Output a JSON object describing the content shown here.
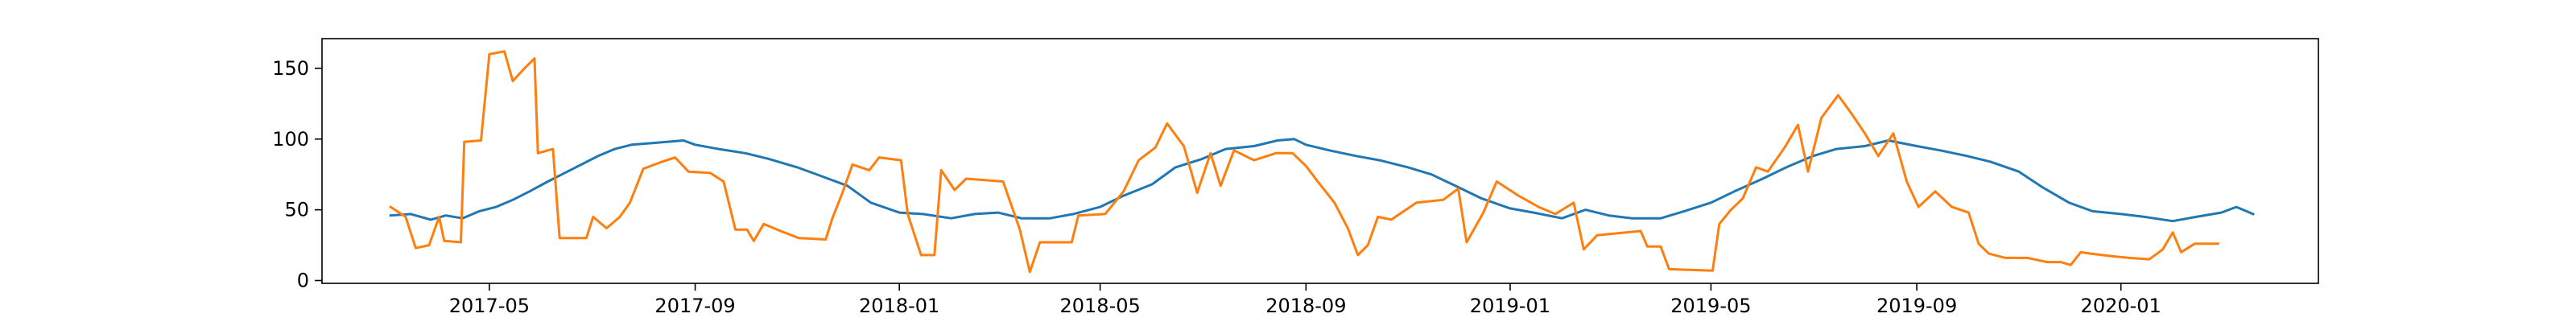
{
  "chart_data": {
    "type": "line",
    "title": "",
    "xlabel": "",
    "ylabel": "",
    "grid": false,
    "legend": "none",
    "xlim": [
      "2017-01-21",
      "2020-04-28"
    ],
    "ylim": [
      -2,
      171
    ],
    "x_ticks": [
      {
        "date": "2017-05-01",
        "label": "2017-05"
      },
      {
        "date": "2017-09-01",
        "label": "2017-09"
      },
      {
        "date": "2018-01-01",
        "label": "2018-01"
      },
      {
        "date": "2018-05-01",
        "label": "2018-05"
      },
      {
        "date": "2018-09-01",
        "label": "2018-09"
      },
      {
        "date": "2019-01-01",
        "label": "2019-01"
      },
      {
        "date": "2019-05-01",
        "label": "2019-05"
      },
      {
        "date": "2019-09-01",
        "label": "2019-09"
      },
      {
        "date": "2020-01-01",
        "label": "2020-01"
      }
    ],
    "y_ticks": [
      0,
      50,
      100,
      150
    ],
    "series": [
      {
        "color": "#1f77b4",
        "points": [
          [
            "2017-03-03",
            46
          ],
          [
            "2017-03-15",
            47
          ],
          [
            "2017-03-27",
            43
          ],
          [
            "2017-04-05",
            46
          ],
          [
            "2017-04-15",
            44
          ],
          [
            "2017-04-25",
            49
          ],
          [
            "2017-05-05",
            52
          ],
          [
            "2017-05-15",
            57
          ],
          [
            "2017-05-25",
            63
          ],
          [
            "2017-06-05",
            70
          ],
          [
            "2017-06-15",
            76
          ],
          [
            "2017-06-25",
            82
          ],
          [
            "2017-07-05",
            88
          ],
          [
            "2017-07-15",
            93
          ],
          [
            "2017-07-25",
            96
          ],
          [
            "2017-08-05",
            97
          ],
          [
            "2017-08-15",
            98
          ],
          [
            "2017-08-25",
            99
          ],
          [
            "2017-09-01",
            96
          ],
          [
            "2017-09-15",
            93
          ],
          [
            "2017-10-01",
            90
          ],
          [
            "2017-10-15",
            86
          ],
          [
            "2017-11-01",
            80
          ],
          [
            "2017-11-15",
            74
          ],
          [
            "2017-12-01",
            67
          ],
          [
            "2017-12-15",
            55
          ],
          [
            "2018-01-01",
            48
          ],
          [
            "2018-01-15",
            47
          ],
          [
            "2018-02-01",
            44
          ],
          [
            "2018-02-15",
            47
          ],
          [
            "2018-03-01",
            48
          ],
          [
            "2018-03-15",
            44
          ],
          [
            "2018-04-01",
            44
          ],
          [
            "2018-04-15",
            47
          ],
          [
            "2018-05-01",
            52
          ],
          [
            "2018-05-15",
            60
          ],
          [
            "2018-06-01",
            68
          ],
          [
            "2018-06-15",
            80
          ],
          [
            "2018-07-01",
            86
          ],
          [
            "2018-07-15",
            93
          ],
          [
            "2018-08-01",
            95
          ],
          [
            "2018-08-15",
            99
          ],
          [
            "2018-08-25",
            100
          ],
          [
            "2018-09-01",
            96
          ],
          [
            "2018-09-15",
            92
          ],
          [
            "2018-10-01",
            88
          ],
          [
            "2018-10-15",
            85
          ],
          [
            "2018-11-01",
            80
          ],
          [
            "2018-11-15",
            75
          ],
          [
            "2018-12-01",
            66
          ],
          [
            "2018-12-15",
            58
          ],
          [
            "2019-01-01",
            51
          ],
          [
            "2019-01-15",
            48
          ],
          [
            "2019-02-01",
            44
          ],
          [
            "2019-02-15",
            50
          ],
          [
            "2019-03-01",
            46
          ],
          [
            "2019-03-15",
            44
          ],
          [
            "2019-04-01",
            44
          ],
          [
            "2019-04-15",
            49
          ],
          [
            "2019-05-01",
            55
          ],
          [
            "2019-05-15",
            63
          ],
          [
            "2019-06-01",
            72
          ],
          [
            "2019-06-15",
            80
          ],
          [
            "2019-07-01",
            88
          ],
          [
            "2019-07-15",
            93
          ],
          [
            "2019-08-01",
            95
          ],
          [
            "2019-08-15",
            99
          ],
          [
            "2019-09-01",
            95
          ],
          [
            "2019-09-15",
            92
          ],
          [
            "2019-10-01",
            88
          ],
          [
            "2019-10-15",
            84
          ],
          [
            "2019-11-01",
            77
          ],
          [
            "2019-11-15",
            66
          ],
          [
            "2019-12-01",
            55
          ],
          [
            "2019-12-15",
            49
          ],
          [
            "2020-01-01",
            47
          ],
          [
            "2020-01-15",
            45
          ],
          [
            "2020-02-01",
            42
          ],
          [
            "2020-02-15",
            45
          ],
          [
            "2020-03-01",
            48
          ],
          [
            "2020-03-10",
            52
          ],
          [
            "2020-03-20",
            47
          ]
        ]
      },
      {
        "color": "#ff7f0e",
        "points": [
          [
            "2017-03-03",
            52
          ],
          [
            "2017-03-12",
            45
          ],
          [
            "2017-03-18",
            23
          ],
          [
            "2017-03-26",
            25
          ],
          [
            "2017-04-01",
            45
          ],
          [
            "2017-04-04",
            28
          ],
          [
            "2017-04-14",
            27
          ],
          [
            "2017-04-16",
            98
          ],
          [
            "2017-04-26",
            99
          ],
          [
            "2017-05-01",
            160
          ],
          [
            "2017-05-10",
            162
          ],
          [
            "2017-05-15",
            141
          ],
          [
            "2017-05-22",
            150
          ],
          [
            "2017-05-28",
            157
          ],
          [
            "2017-05-30",
            90
          ],
          [
            "2017-06-08",
            93
          ],
          [
            "2017-06-12",
            30
          ],
          [
            "2017-06-28",
            30
          ],
          [
            "2017-07-02",
            45
          ],
          [
            "2017-07-10",
            37
          ],
          [
            "2017-07-18",
            45
          ],
          [
            "2017-07-24",
            55
          ],
          [
            "2017-08-01",
            79
          ],
          [
            "2017-08-10",
            83
          ],
          [
            "2017-08-20",
            87
          ],
          [
            "2017-08-28",
            77
          ],
          [
            "2017-09-10",
            76
          ],
          [
            "2017-09-18",
            70
          ],
          [
            "2017-09-25",
            36
          ],
          [
            "2017-10-02",
            36
          ],
          [
            "2017-10-06",
            28
          ],
          [
            "2017-10-12",
            40
          ],
          [
            "2017-10-22",
            35
          ],
          [
            "2017-11-02",
            30
          ],
          [
            "2017-11-18",
            29
          ],
          [
            "2017-11-22",
            44
          ],
          [
            "2017-11-28",
            62
          ],
          [
            "2017-12-04",
            82
          ],
          [
            "2017-12-14",
            78
          ],
          [
            "2017-12-20",
            87
          ],
          [
            "2018-01-02",
            85
          ],
          [
            "2018-01-06",
            47
          ],
          [
            "2018-01-14",
            18
          ],
          [
            "2018-01-22",
            18
          ],
          [
            "2018-01-26",
            78
          ],
          [
            "2018-02-03",
            64
          ],
          [
            "2018-02-10",
            72
          ],
          [
            "2018-03-04",
            70
          ],
          [
            "2018-03-14",
            36
          ],
          [
            "2018-03-20",
            6
          ],
          [
            "2018-03-26",
            27
          ],
          [
            "2018-04-14",
            27
          ],
          [
            "2018-04-18",
            46
          ],
          [
            "2018-05-04",
            47
          ],
          [
            "2018-05-15",
            63
          ],
          [
            "2018-05-24",
            85
          ],
          [
            "2018-06-03",
            94
          ],
          [
            "2018-06-10",
            111
          ],
          [
            "2018-06-20",
            95
          ],
          [
            "2018-06-28",
            62
          ],
          [
            "2018-07-06",
            90
          ],
          [
            "2018-07-12",
            67
          ],
          [
            "2018-07-20",
            92
          ],
          [
            "2018-08-01",
            85
          ],
          [
            "2018-08-14",
            90
          ],
          [
            "2018-08-24",
            90
          ],
          [
            "2018-09-01",
            81
          ],
          [
            "2018-09-08",
            70
          ],
          [
            "2018-09-18",
            55
          ],
          [
            "2018-09-26",
            37
          ],
          [
            "2018-10-02",
            18
          ],
          [
            "2018-10-08",
            25
          ],
          [
            "2018-10-14",
            45
          ],
          [
            "2018-10-22",
            43
          ],
          [
            "2018-11-06",
            55
          ],
          [
            "2018-11-22",
            57
          ],
          [
            "2018-12-01",
            65
          ],
          [
            "2018-12-06",
            27
          ],
          [
            "2018-12-16",
            48
          ],
          [
            "2018-12-24",
            70
          ],
          [
            "2019-01-06",
            60
          ],
          [
            "2019-01-18",
            52
          ],
          [
            "2019-01-28",
            47
          ],
          [
            "2019-02-08",
            55
          ],
          [
            "2019-02-14",
            22
          ],
          [
            "2019-02-22",
            32
          ],
          [
            "2019-03-20",
            35
          ],
          [
            "2019-03-24",
            24
          ],
          [
            "2019-04-01",
            24
          ],
          [
            "2019-04-06",
            8
          ],
          [
            "2019-05-02",
            7
          ],
          [
            "2019-05-06",
            40
          ],
          [
            "2019-05-13",
            50
          ],
          [
            "2019-05-20",
            58
          ],
          [
            "2019-05-28",
            80
          ],
          [
            "2019-06-04",
            77
          ],
          [
            "2019-06-14",
            94
          ],
          [
            "2019-06-22",
            110
          ],
          [
            "2019-06-28",
            77
          ],
          [
            "2019-07-06",
            115
          ],
          [
            "2019-07-16",
            131
          ],
          [
            "2019-07-24",
            118
          ],
          [
            "2019-08-01",
            104
          ],
          [
            "2019-08-09",
            88
          ],
          [
            "2019-08-18",
            104
          ],
          [
            "2019-08-26",
            70
          ],
          [
            "2019-09-02",
            52
          ],
          [
            "2019-09-12",
            63
          ],
          [
            "2019-09-22",
            52
          ],
          [
            "2019-10-02",
            48
          ],
          [
            "2019-10-08",
            26
          ],
          [
            "2019-10-14",
            19
          ],
          [
            "2019-10-24",
            16
          ],
          [
            "2019-11-06",
            16
          ],
          [
            "2019-11-18",
            13
          ],
          [
            "2019-11-26",
            13
          ],
          [
            "2019-12-02",
            11
          ],
          [
            "2019-12-08",
            20
          ],
          [
            "2019-12-14",
            19
          ],
          [
            "2019-12-28",
            17
          ],
          [
            "2020-01-06",
            16
          ],
          [
            "2020-01-18",
            15
          ],
          [
            "2020-01-26",
            22
          ],
          [
            "2020-02-01",
            34
          ],
          [
            "2020-02-06",
            20
          ],
          [
            "2020-02-14",
            26
          ],
          [
            "2020-02-28",
            26
          ]
        ]
      }
    ]
  }
}
